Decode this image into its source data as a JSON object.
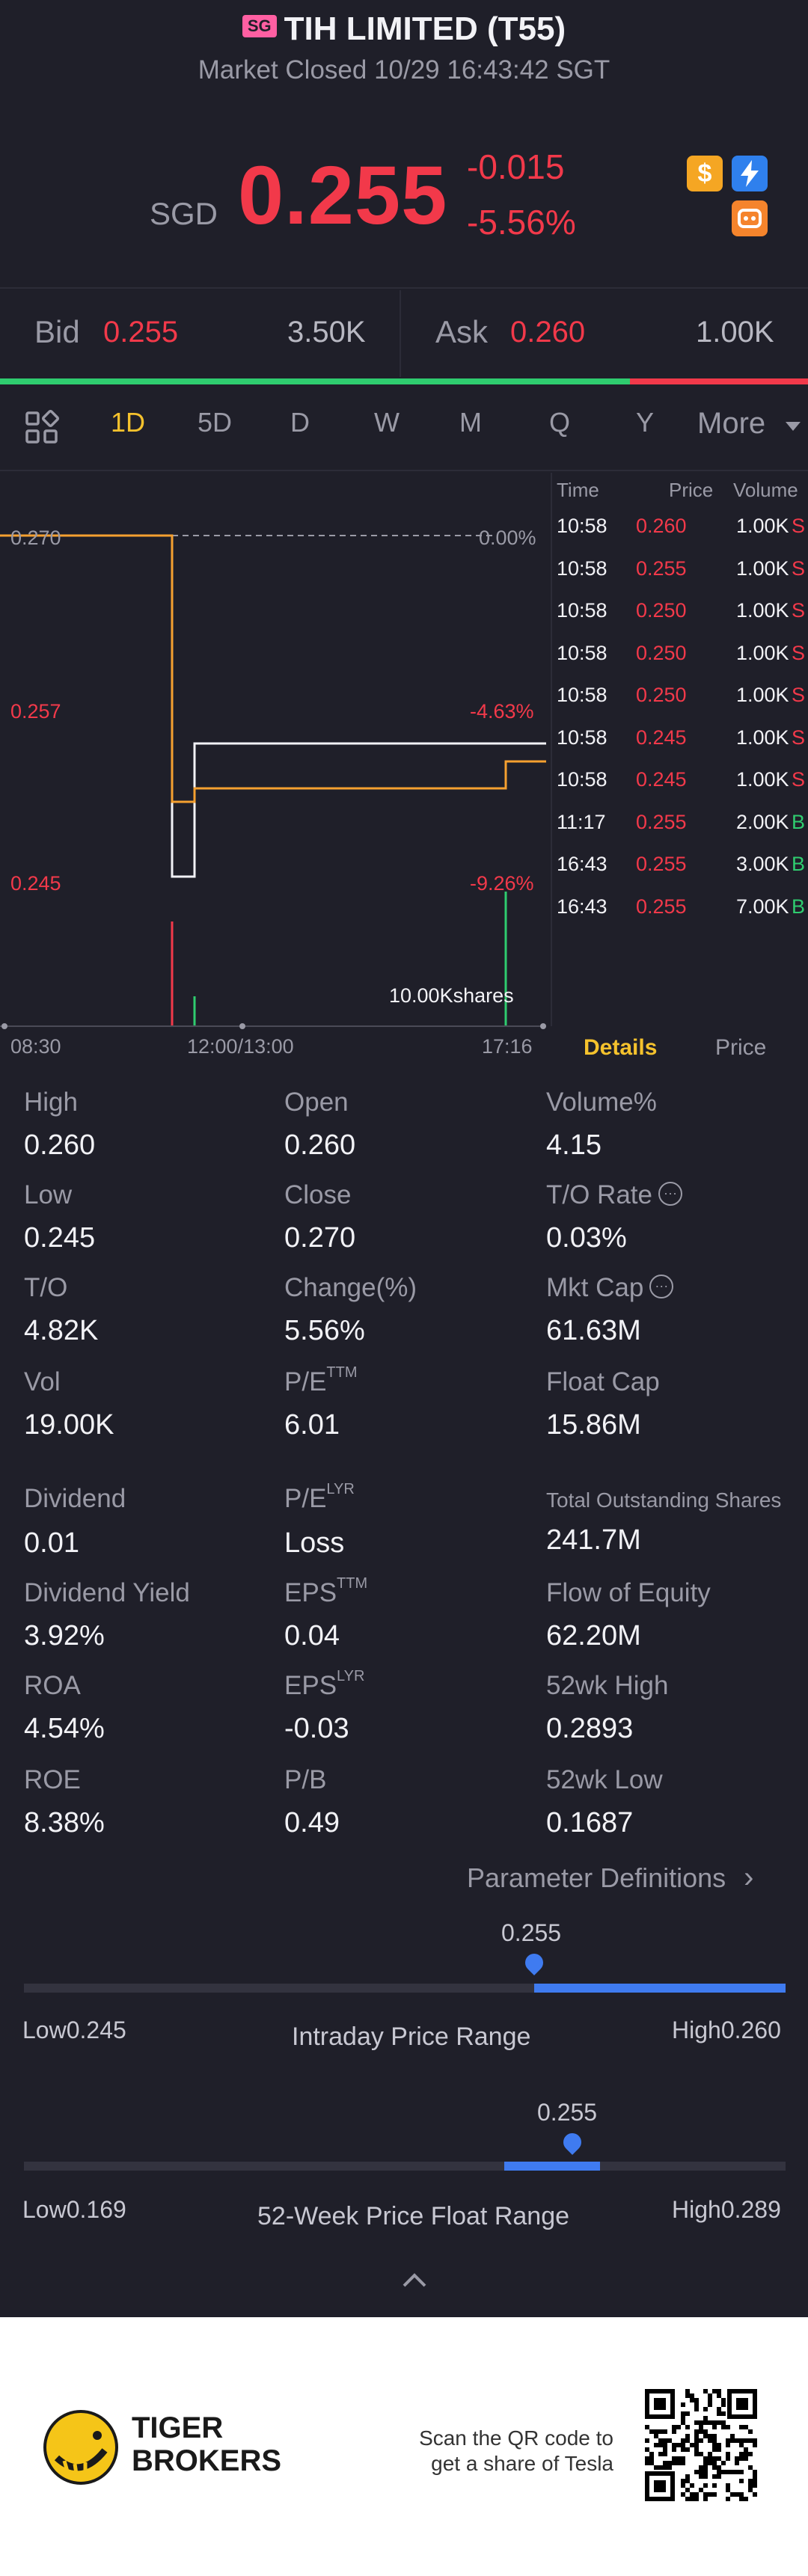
{
  "header": {
    "badge": "SG",
    "title": "TIH LIMITED (T55)",
    "status": "Market Closed 10/29 16:43:42 SGT"
  },
  "quote": {
    "currency": "SGD",
    "price": "0.255",
    "change": "-0.015",
    "change_pct": "-5.56%",
    "icons": [
      "dollar-icon",
      "flash-icon",
      "robot-icon"
    ]
  },
  "bid_ask": {
    "bid_label": "Bid",
    "bid_price": "0.255",
    "bid_size": "3.50K",
    "ask_label": "Ask",
    "ask_price": "0.260",
    "ask_size": "1.00K",
    "bid_ratio": 0.78
  },
  "tabs": [
    "1D",
    "5D",
    "D",
    "W",
    "M",
    "Q",
    "Y",
    "More"
  ],
  "active_tab": "1D",
  "chart": {
    "prices": [
      "0.270",
      "0.257",
      "0.245"
    ],
    "pcts": [
      "0.00%",
      "-4.63%",
      "-9.26%"
    ],
    "volume_label": "10.00Kshares",
    "times": [
      "08:30",
      "12:00/13:00",
      "17:16"
    ]
  },
  "trades": {
    "headers": [
      "Time",
      "Price",
      "Volume"
    ],
    "rows": [
      {
        "time": "10:58",
        "price": "0.260",
        "vol": "1.00K",
        "side": "S"
      },
      {
        "time": "10:58",
        "price": "0.255",
        "vol": "1.00K",
        "side": "S"
      },
      {
        "time": "10:58",
        "price": "0.250",
        "vol": "1.00K",
        "side": "S"
      },
      {
        "time": "10:58",
        "price": "0.250",
        "vol": "1.00K",
        "side": "S"
      },
      {
        "time": "10:58",
        "price": "0.250",
        "vol": "1.00K",
        "side": "S"
      },
      {
        "time": "10:58",
        "price": "0.245",
        "vol": "1.00K",
        "side": "S"
      },
      {
        "time": "10:58",
        "price": "0.245",
        "vol": "1.00K",
        "side": "S"
      },
      {
        "time": "11:17",
        "price": "0.255",
        "vol": "2.00K",
        "side": "B"
      },
      {
        "time": "16:43",
        "price": "0.255",
        "vol": "3.00K",
        "side": "B"
      },
      {
        "time": "16:43",
        "price": "0.255",
        "vol": "7.00K",
        "side": "B"
      }
    ],
    "tab_details": "Details",
    "tab_price": "Price"
  },
  "details": {
    "high_l": "High",
    "high": "0.260",
    "open_l": "Open",
    "open": "0.260",
    "volpct_l": "Volume%",
    "volpct": "4.15",
    "low_l": "Low",
    "low": "0.245",
    "close_l": "Close",
    "close": "0.270",
    "tor_l": "T/O Rate",
    "tor": "0.03%",
    "to_l": "T/O",
    "to": "4.82K",
    "chg_l": "Change(%)",
    "chg": "5.56%",
    "mcap_l": "Mkt Cap",
    "mcap": "61.63M",
    "vol_l": "Vol",
    "vol": "19.00K",
    "pe_l": "P/E",
    "pe_sup": "TTM",
    "pe": "6.01",
    "fcap_l": "Float Cap",
    "fcap": "15.86M",
    "div_l": "Dividend",
    "div": "0.01",
    "pelyr_l": "P/E",
    "pelyr_sup": "LYR",
    "pelyr": "Loss",
    "tos_l": "Total Outstanding Shares",
    "tos": "241.7M",
    "dy_l": "Dividend Yield",
    "dy": "3.92%",
    "eps_l": "EPS",
    "eps_sup": "TTM",
    "eps": "0.04",
    "foe_l": "Flow of Equity",
    "foe": "62.20M",
    "roa_l": "ROA",
    "roa": "4.54%",
    "epslyr_l": "EPS",
    "epslyr_sup": "LYR",
    "epslyr": "-0.03",
    "h52_l": "52wk High",
    "h52": "0.2893",
    "roe_l": "ROE",
    "roe": "8.38%",
    "pb_l": "P/B",
    "pb": "0.49",
    "l52_l": "52wk Low",
    "l52": "0.1687",
    "param_link": "Parameter Definitions"
  },
  "ranges": {
    "intraday": {
      "current": "0.255",
      "low_label": "Low0.245",
      "high_label": "High0.260",
      "title": "Intraday Price Range",
      "position": 0.67
    },
    "week52": {
      "current": "0.255",
      "low_label": "Low0.169",
      "high_label": "High0.289",
      "title": "52-Week Price Float Range",
      "position": 0.72
    }
  },
  "footer": {
    "brand_line1": "TIGER",
    "brand_line2": "BROKERS",
    "cta_line1": "Scan the QR code to",
    "cta_line2": "get a share of Tesla"
  }
}
